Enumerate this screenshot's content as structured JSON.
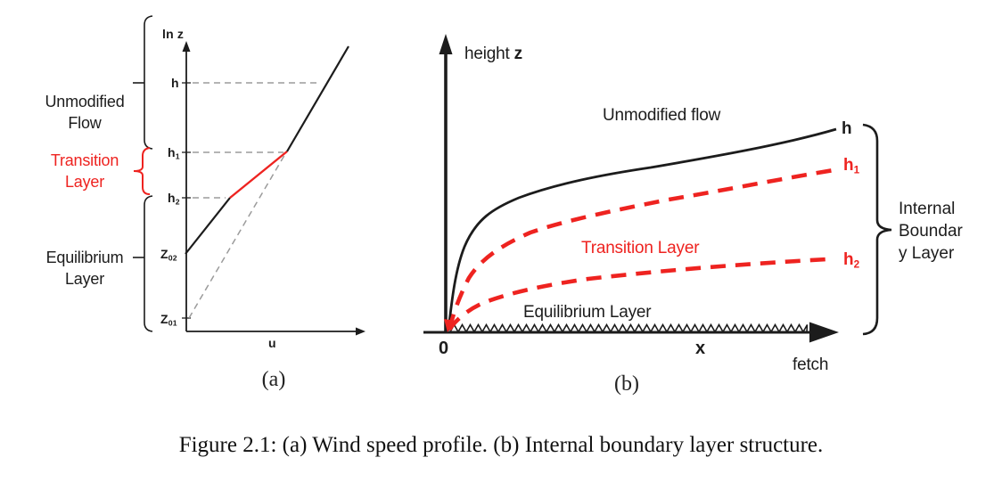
{
  "colors": {
    "red": "#ee2320",
    "ink": "#1c1c1c",
    "gray_dash": "#9b9b9b"
  },
  "caption": "Figure 2.1: (a) Wind speed profile. (b) Internal boundary layer structure.",
  "panel_a": {
    "label": "(a)",
    "y_axis_label": "ln z",
    "x_axis_label": "u",
    "regions": {
      "unmodified": {
        "line1": "Unmodified",
        "line2": "Flow"
      },
      "transition": {
        "line1": "Transition",
        "line2": "Layer"
      },
      "equilibrium": {
        "line1": "Equilibrium",
        "line2": "Layer"
      }
    },
    "tick_labels": {
      "h": {
        "base": "h",
        "sub": ""
      },
      "h1": {
        "base": "h",
        "sub": "1"
      },
      "h2": {
        "base": "h",
        "sub": "2"
      },
      "z02": {
        "base": "Z",
        "sub": "02"
      },
      "z01": {
        "base": "Z",
        "sub": "01"
      }
    }
  },
  "panel_b": {
    "label": "(b)",
    "y_axis_text": "height",
    "y_axis_var": "z",
    "x_axis_var": "x",
    "origin_label": "0",
    "fetch_label": "fetch",
    "flow_labels": {
      "unmodified": "Unmodified flow",
      "transition": "Transition Layer",
      "equilibrium": "Equilibrium Layer"
    },
    "curve_labels": {
      "h": {
        "base": "h",
        "sub": ""
      },
      "h1": {
        "base": "h",
        "sub": "1"
      },
      "h2": {
        "base": "h",
        "sub": "2"
      }
    },
    "brace_label": {
      "line1": "Internal",
      "line2": "Boundar",
      "line3": "y Layer"
    }
  }
}
